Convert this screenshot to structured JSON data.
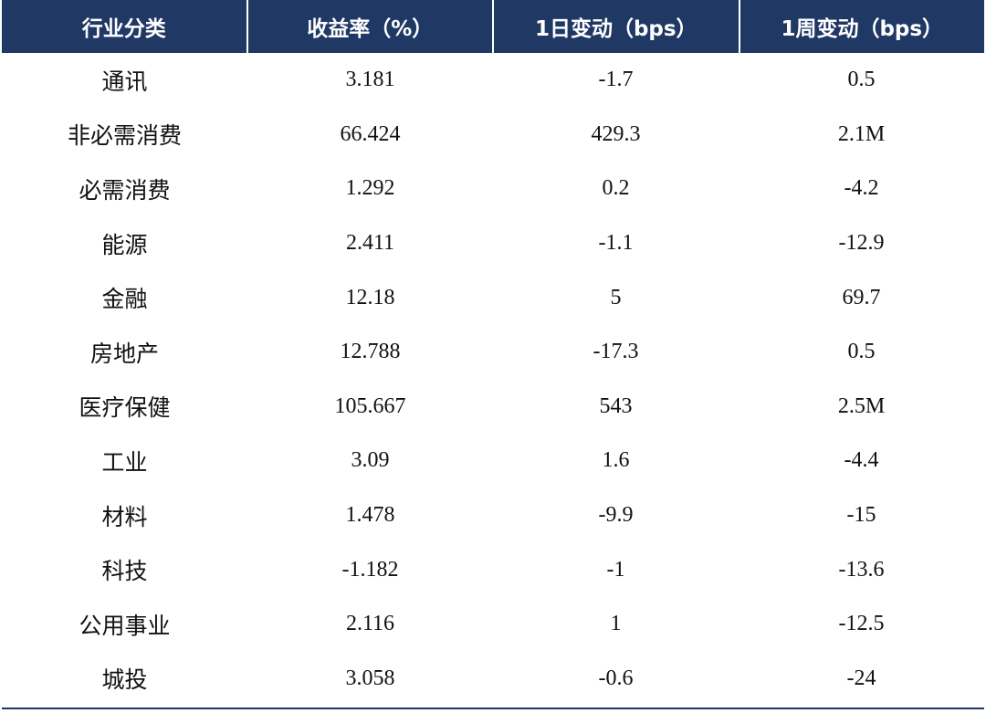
{
  "table": {
    "headers": [
      "行业分类",
      "收益率（%）",
      "1日变动（bps）",
      "1周变动（bps）"
    ],
    "rows": [
      [
        "通讯",
        "3.181",
        "-1.7",
        "0.5"
      ],
      [
        "非必需消费",
        "66.424",
        "429.3",
        "2.1M"
      ],
      [
        "必需消费",
        "1.292",
        "0.2",
        "-4.2"
      ],
      [
        "能源",
        "2.411",
        "-1.1",
        "-12.9"
      ],
      [
        "金融",
        "12.18",
        "5",
        "69.7"
      ],
      [
        "房地产",
        "12.788",
        "-17.3",
        "0.5"
      ],
      [
        "医疗保健",
        "105.667",
        "543",
        "2.5M"
      ],
      [
        "工业",
        "3.09",
        "1.6",
        "-4.4"
      ],
      [
        "材料",
        "1.478",
        "-9.9",
        "-15"
      ],
      [
        "科技",
        "-1.182",
        "-1",
        "-13.6"
      ],
      [
        "公用事业",
        "2.116",
        "1",
        "-12.5"
      ],
      [
        "城投",
        "3.058",
        "-0.6",
        "-24"
      ]
    ]
  },
  "colors": {
    "header_background": "#1f3864",
    "header_text": "#ffffff",
    "body_text": "#111111"
  }
}
